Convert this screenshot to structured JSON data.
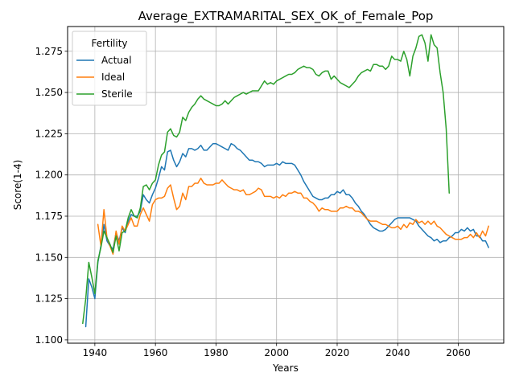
{
  "chart_data": {
    "type": "line",
    "title": "Average_EXTRAMARITAL_SEX_OK_of_Female_Pop",
    "xlabel": "Years",
    "ylabel": "Score(1-4)",
    "xlim": [
      1931,
      2075
    ],
    "ylim": [
      1.098,
      1.29
    ],
    "xticks": [
      1940,
      1960,
      1980,
      2000,
      2020,
      2040,
      2060
    ],
    "yticks": [
      1.1,
      1.125,
      1.15,
      1.175,
      1.2,
      1.225,
      1.25,
      1.275
    ],
    "ytick_labels": [
      "1.100",
      "1.125",
      "1.150",
      "1.175",
      "1.200",
      "1.225",
      "1.250",
      "1.275"
    ],
    "grid": true,
    "legend": {
      "title": "Fertility",
      "placement": "upper-left",
      "entries": [
        "Actual",
        "Ideal",
        "Sterile"
      ]
    },
    "series": [
      {
        "name": "Actual",
        "color": "#1f77b4",
        "x": [
          1937,
          1938,
          1939,
          1940,
          1941,
          1942,
          1943,
          1944,
          1945,
          1946,
          1947,
          1948,
          1949,
          1950,
          1951,
          1952,
          1953,
          1954,
          1955,
          1956,
          1957,
          1958,
          1959,
          1960,
          1961,
          1962,
          1963,
          1964,
          1965,
          1966,
          1967,
          1968,
          1969,
          1970,
          1971,
          1972,
          1973,
          1974,
          1975,
          1976,
          1977,
          1978,
          1979,
          1980,
          1981,
          1982,
          1983,
          1984,
          1985,
          1986,
          1987,
          1988,
          1989,
          1990,
          1991,
          1992,
          1993,
          1994,
          1995,
          1996,
          1997,
          1998,
          1999,
          2000,
          2001,
          2002,
          2003,
          2004,
          2005,
          2006,
          2007,
          2008,
          2009,
          2010,
          2011,
          2012,
          2013,
          2014,
          2015,
          2016,
          2017,
          2018,
          2019,
          2020,
          2021,
          2022,
          2023,
          2024,
          2025,
          2026,
          2027,
          2028,
          2029,
          2030,
          2031,
          2032,
          2033,
          2034,
          2035,
          2036,
          2037,
          2038,
          2039,
          2040,
          2041,
          2042,
          2043,
          2044,
          2045,
          2046,
          2047,
          2048,
          2049,
          2050,
          2051,
          2052,
          2053,
          2054,
          2055,
          2056,
          2057,
          2058,
          2059,
          2060,
          2061,
          2062,
          2063,
          2064,
          2065,
          2066,
          2067,
          2068,
          2069,
          2070
        ],
        "y": [
          1.108,
          1.137,
          1.132,
          1.125,
          1.147,
          1.157,
          1.17,
          1.16,
          1.157,
          1.155,
          1.165,
          1.16,
          1.168,
          1.165,
          1.172,
          1.176,
          1.175,
          1.175,
          1.178,
          1.188,
          1.185,
          1.183,
          1.188,
          1.192,
          1.198,
          1.205,
          1.203,
          1.214,
          1.215,
          1.209,
          1.205,
          1.208,
          1.213,
          1.211,
          1.216,
          1.216,
          1.215,
          1.216,
          1.218,
          1.215,
          1.215,
          1.217,
          1.219,
          1.219,
          1.218,
          1.217,
          1.216,
          1.215,
          1.219,
          1.218,
          1.216,
          1.215,
          1.213,
          1.211,
          1.209,
          1.209,
          1.208,
          1.208,
          1.207,
          1.205,
          1.206,
          1.206,
          1.206,
          1.207,
          1.206,
          1.208,
          1.207,
          1.207,
          1.207,
          1.206,
          1.203,
          1.2,
          1.196,
          1.193,
          1.19,
          1.187,
          1.186,
          1.185,
          1.185,
          1.186,
          1.186,
          1.188,
          1.188,
          1.19,
          1.189,
          1.191,
          1.188,
          1.188,
          1.186,
          1.183,
          1.181,
          1.178,
          1.176,
          1.173,
          1.17,
          1.168,
          1.167,
          1.166,
          1.166,
          1.167,
          1.169,
          1.171,
          1.173,
          1.174,
          1.174,
          1.174,
          1.174,
          1.174,
          1.173,
          1.172,
          1.169,
          1.167,
          1.165,
          1.163,
          1.162,
          1.16,
          1.161,
          1.159,
          1.16,
          1.16,
          1.162,
          1.163,
          1.165,
          1.165,
          1.167,
          1.166,
          1.168,
          1.166,
          1.167,
          1.163,
          1.163,
          1.16,
          1.16,
          1.156
        ]
      },
      {
        "name": "Ideal",
        "color": "#ff7f0e",
        "x": [
          1941,
          1942,
          1943,
          1944,
          1945,
          1946,
          1947,
          1948,
          1949,
          1950,
          1951,
          1952,
          1953,
          1954,
          1955,
          1956,
          1957,
          1958,
          1959,
          1960,
          1961,
          1962,
          1963,
          1964,
          1965,
          1966,
          1967,
          1968,
          1969,
          1970,
          1971,
          1972,
          1973,
          1974,
          1975,
          1976,
          1977,
          1978,
          1979,
          1980,
          1981,
          1982,
          1983,
          1984,
          1985,
          1986,
          1987,
          1988,
          1989,
          1990,
          1991,
          1992,
          1993,
          1994,
          1995,
          1996,
          1997,
          1998,
          1999,
          2000,
          2001,
          2002,
          2003,
          2004,
          2005,
          2006,
          2007,
          2008,
          2009,
          2010,
          2011,
          2012,
          2013,
          2014,
          2015,
          2016,
          2017,
          2018,
          2019,
          2020,
          2021,
          2022,
          2023,
          2024,
          2025,
          2026,
          2027,
          2028,
          2029,
          2030,
          2031,
          2032,
          2033,
          2034,
          2035,
          2036,
          2037,
          2038,
          2039,
          2040,
          2041,
          2042,
          2043,
          2044,
          2045,
          2046,
          2047,
          2048,
          2049,
          2050,
          2051,
          2052,
          2053,
          2054,
          2055,
          2056,
          2057,
          2058,
          2059,
          2060,
          2061,
          2062,
          2063,
          2064,
          2065,
          2066,
          2067,
          2068,
          2069,
          2070
        ],
        "y": [
          1.17,
          1.157,
          1.179,
          1.162,
          1.157,
          1.152,
          1.166,
          1.158,
          1.169,
          1.166,
          1.17,
          1.174,
          1.169,
          1.169,
          1.176,
          1.18,
          1.176,
          1.172,
          1.182,
          1.185,
          1.186,
          1.186,
          1.187,
          1.192,
          1.194,
          1.186,
          1.179,
          1.181,
          1.189,
          1.185,
          1.193,
          1.193,
          1.195,
          1.195,
          1.198,
          1.195,
          1.194,
          1.194,
          1.194,
          1.195,
          1.195,
          1.197,
          1.195,
          1.193,
          1.192,
          1.191,
          1.191,
          1.19,
          1.191,
          1.188,
          1.188,
          1.189,
          1.19,
          1.192,
          1.191,
          1.187,
          1.187,
          1.187,
          1.186,
          1.187,
          1.186,
          1.188,
          1.187,
          1.189,
          1.189,
          1.19,
          1.189,
          1.189,
          1.186,
          1.186,
          1.184,
          1.183,
          1.181,
          1.178,
          1.18,
          1.179,
          1.179,
          1.178,
          1.178,
          1.178,
          1.18,
          1.18,
          1.181,
          1.18,
          1.18,
          1.178,
          1.178,
          1.177,
          1.175,
          1.173,
          1.172,
          1.172,
          1.172,
          1.171,
          1.17,
          1.17,
          1.169,
          1.168,
          1.168,
          1.169,
          1.167,
          1.17,
          1.168,
          1.171,
          1.17,
          1.173,
          1.171,
          1.172,
          1.17,
          1.172,
          1.17,
          1.172,
          1.169,
          1.168,
          1.166,
          1.164,
          1.163,
          1.162,
          1.161,
          1.161,
          1.161,
          1.162,
          1.162,
          1.164,
          1.162,
          1.165,
          1.162,
          1.166,
          1.163,
          1.169
        ]
      },
      {
        "name": "Sterile",
        "color": "#2ca02c",
        "x": [
          1936,
          1937,
          1938,
          1939,
          1940,
          1941,
          1942,
          1943,
          1944,
          1945,
          1946,
          1947,
          1948,
          1949,
          1950,
          1951,
          1952,
          1953,
          1954,
          1955,
          1956,
          1957,
          1958,
          1959,
          1960,
          1961,
          1962,
          1963,
          1964,
          1965,
          1966,
          1967,
          1968,
          1969,
          1970,
          1971,
          1972,
          1973,
          1974,
          1975,
          1976,
          1977,
          1978,
          1979,
          1980,
          1981,
          1982,
          1983,
          1984,
          1985,
          1986,
          1987,
          1988,
          1989,
          1990,
          1991,
          1992,
          1993,
          1994,
          1995,
          1996,
          1997,
          1998,
          1999,
          2000,
          2001,
          2002,
          2003,
          2004,
          2005,
          2006,
          2007,
          2008,
          2009,
          2010,
          2011,
          2012,
          2013,
          2014,
          2015,
          2016,
          2017,
          2018,
          2019,
          2020,
          2021,
          2022,
          2023,
          2024,
          2025,
          2026,
          2027,
          2028,
          2029,
          2030,
          2031,
          2032,
          2033,
          2034,
          2035,
          2036,
          2037,
          2038,
          2039,
          2040,
          2041,
          2042,
          2043,
          2044,
          2045,
          2046,
          2047,
          2048,
          2049,
          2050,
          2051,
          2052,
          2053,
          2054,
          2055,
          2056,
          2057
        ],
        "y": [
          1.11,
          1.125,
          1.147,
          1.138,
          1.128,
          1.148,
          1.156,
          1.166,
          1.162,
          1.158,
          1.153,
          1.163,
          1.154,
          1.165,
          1.166,
          1.174,
          1.179,
          1.175,
          1.174,
          1.18,
          1.193,
          1.194,
          1.191,
          1.195,
          1.197,
          1.206,
          1.212,
          1.214,
          1.226,
          1.228,
          1.224,
          1.223,
          1.226,
          1.235,
          1.233,
          1.238,
          1.241,
          1.243,
          1.246,
          1.248,
          1.246,
          1.245,
          1.244,
          1.243,
          1.242,
          1.242,
          1.243,
          1.245,
          1.243,
          1.245,
          1.247,
          1.248,
          1.249,
          1.25,
          1.249,
          1.25,
          1.251,
          1.251,
          1.251,
          1.254,
          1.257,
          1.255,
          1.256,
          1.255,
          1.257,
          1.258,
          1.259,
          1.26,
          1.261,
          1.261,
          1.262,
          1.264,
          1.265,
          1.266,
          1.265,
          1.265,
          1.264,
          1.261,
          1.26,
          1.262,
          1.263,
          1.263,
          1.258,
          1.26,
          1.258,
          1.256,
          1.255,
          1.254,
          1.253,
          1.255,
          1.257,
          1.26,
          1.262,
          1.263,
          1.264,
          1.263,
          1.267,
          1.267,
          1.266,
          1.266,
          1.264,
          1.266,
          1.272,
          1.27,
          1.27,
          1.269,
          1.275,
          1.27,
          1.26,
          1.272,
          1.277,
          1.284,
          1.285,
          1.28,
          1.269,
          1.285,
          1.279,
          1.277,
          1.262,
          1.25,
          1.228,
          1.189
        ]
      }
    ]
  }
}
